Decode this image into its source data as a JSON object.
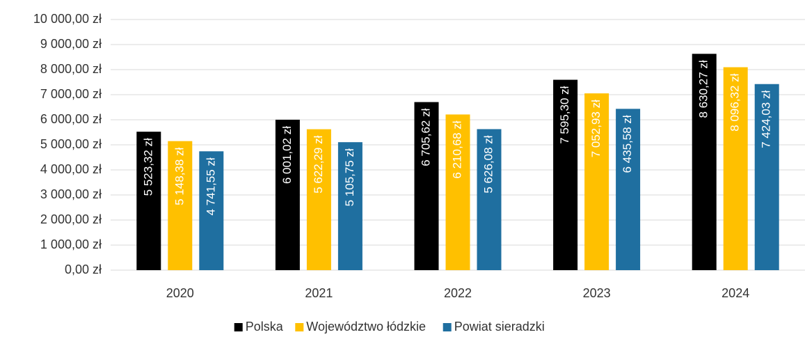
{
  "chart_data": {
    "type": "bar",
    "categories": [
      "2020",
      "2021",
      "2022",
      "2023",
      "2024"
    ],
    "series": [
      {
        "name": "Polska",
        "color": "#000000",
        "values": [
          5523.32,
          6001.02,
          6705.62,
          7595.3,
          8630.27
        ],
        "value_labels": [
          "5 523,32 zł",
          "6 001,02 zł",
          "6 705,62 zł",
          "7 595,30 zł",
          "8 630,27 zł"
        ]
      },
      {
        "name": "Województwo łódzkie",
        "color": "#ffc000",
        "values": [
          5148.38,
          5622.29,
          6210.68,
          7052.93,
          8096.32
        ],
        "value_labels": [
          "5 148,38 zł",
          "5 622,29 zł",
          "6 210,68 zł",
          "7 052,93 zł",
          "8 096,32 zł"
        ]
      },
      {
        "name": "Powiat sieradzki",
        "color": "#1f6fa0",
        "values": [
          4741.55,
          5105.75,
          5626.08,
          6435.58,
          7424.03
        ],
        "value_labels": [
          "4 741,55 zł",
          "5 105,75 zł",
          "5 626,08 zł",
          "6 435,58 zł",
          "7 424,03 zł"
        ]
      }
    ],
    "ylim": [
      0,
      10000
    ],
    "yticks": [
      {
        "value": 0,
        "label": "0,00 zł"
      },
      {
        "value": 1000,
        "label": "1 000,00 zł"
      },
      {
        "value": 2000,
        "label": "2 000,00 zł"
      },
      {
        "value": 3000,
        "label": "3 000,00 zł"
      },
      {
        "value": 4000,
        "label": "4 000,00 zł"
      },
      {
        "value": 5000,
        "label": "5 000,00 zł"
      },
      {
        "value": 6000,
        "label": "6 000,00 zł"
      },
      {
        "value": 7000,
        "label": "7 000,00 zł"
      },
      {
        "value": 8000,
        "label": "8 000,00 zł"
      },
      {
        "value": 9000,
        "label": "9 000,00 zł"
      },
      {
        "value": 10000,
        "label": "10 000,00 zł"
      }
    ],
    "grid": true,
    "legend": "bottom"
  }
}
